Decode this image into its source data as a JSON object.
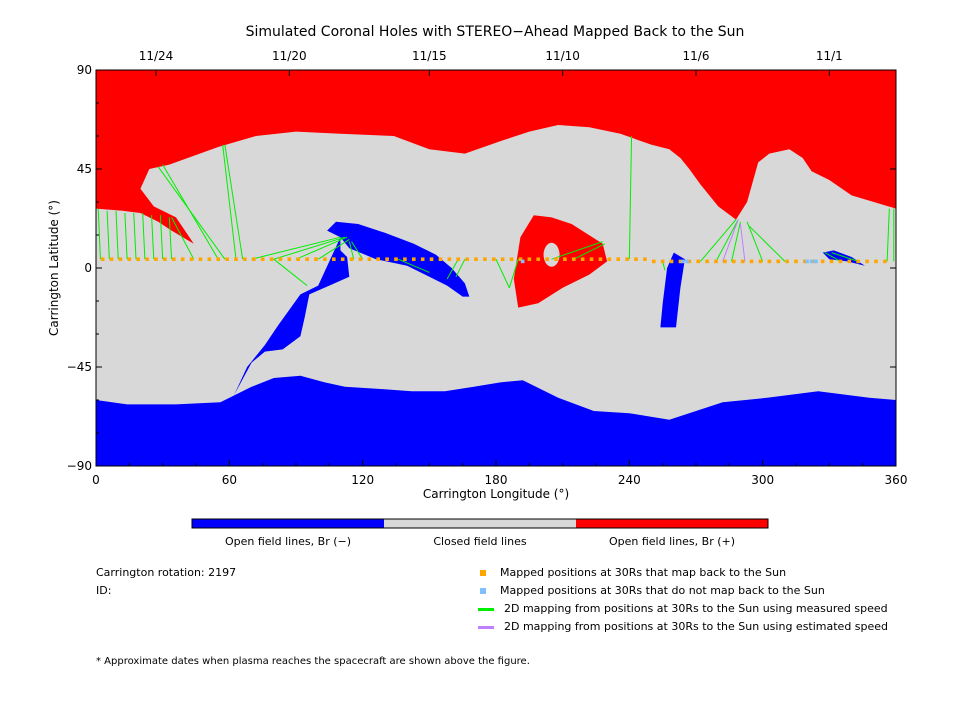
{
  "chart_data": {
    "type": "heatmap",
    "title": "Simulated Coronal Holes with STEREO−Ahead Mapped Back to the Sun",
    "xlabel": "Carrington Longitude (°)",
    "ylabel": "Carrington Latitude (°)",
    "xlim": [
      0,
      360
    ],
    "ylim": [
      -90,
      90
    ],
    "x_ticks": [
      0,
      60,
      120,
      180,
      240,
      300,
      360
    ],
    "y_ticks": [
      -90,
      -45,
      0,
      45,
      90
    ],
    "y_tick_labels": [
      "−90",
      "−45",
      "0",
      "45",
      "90"
    ],
    "top_axis": {
      "labels": [
        "11/24",
        "11/20",
        "11/15",
        "11/10",
        "11/6",
        "11/1"
      ],
      "longitudes": [
        27,
        87,
        150,
        210,
        270,
        330
      ]
    },
    "colors": {
      "open_negative": "#0000ff",
      "closed": "#d8d8d8",
      "open_positive": "#ff0000",
      "mapped": "#ffa500",
      "not_mapped": "#7fbfff",
      "measured_speed": "#00ee00",
      "estimated_speed": "#bf7fff"
    },
    "colorbar": [
      "Open field lines, Br (−)",
      "Closed field lines",
      "Open field lines, Br (+)"
    ],
    "regions": [
      {
        "name": "north-positive",
        "polarity": "+",
        "polygon": [
          [
            0,
            90
          ],
          [
            360,
            90
          ],
          [
            360,
            27
          ],
          [
            350,
            30
          ],
          [
            340,
            33
          ],
          [
            330,
            40
          ],
          [
            322,
            44
          ],
          [
            318,
            50
          ],
          [
            312,
            54
          ],
          [
            303,
            52
          ],
          [
            298,
            48
          ],
          [
            293,
            30
          ],
          [
            288,
            22
          ],
          [
            280,
            28
          ],
          [
            272,
            38
          ],
          [
            267,
            45
          ],
          [
            263,
            50
          ],
          [
            258,
            54
          ],
          [
            250,
            56
          ],
          [
            236,
            61
          ],
          [
            222,
            64
          ],
          [
            208,
            65
          ],
          [
            195,
            62
          ],
          [
            183,
            58
          ],
          [
            166,
            52
          ],
          [
            150,
            54
          ],
          [
            134,
            60
          ],
          [
            110,
            61
          ],
          [
            90,
            62
          ],
          [
            72,
            60
          ],
          [
            55,
            55
          ],
          [
            33,
            47
          ],
          [
            24,
            45
          ],
          [
            20,
            36
          ],
          [
            26,
            28
          ],
          [
            36,
            23
          ],
          [
            44,
            11
          ],
          [
            34,
            17
          ],
          [
            28,
            21
          ],
          [
            20,
            25
          ],
          [
            12,
            26
          ],
          [
            0,
            27
          ]
        ]
      },
      {
        "name": "mid-positive",
        "polarity": "+",
        "polygon": [
          [
            190,
            -18
          ],
          [
            188,
            -5
          ],
          [
            191,
            14
          ],
          [
            197,
            24
          ],
          [
            205,
            23
          ],
          [
            214,
            20
          ],
          [
            228,
            11
          ],
          [
            230,
            3
          ],
          [
            222,
            -3
          ],
          [
            210,
            -9
          ],
          [
            199,
            -16
          ]
        ]
      },
      {
        "name": "south-negative",
        "polarity": "-",
        "polygon": [
          [
            0,
            -60
          ],
          [
            14,
            -62
          ],
          [
            36,
            -62
          ],
          [
            56,
            -61
          ],
          [
            70,
            -54
          ],
          [
            80,
            -50
          ],
          [
            92,
            -49
          ],
          [
            103,
            -52
          ],
          [
            112,
            -54
          ],
          [
            128,
            -55
          ],
          [
            142,
            -56
          ],
          [
            157,
            -56
          ],
          [
            170,
            -54
          ],
          [
            182,
            -52
          ],
          [
            192,
            -51
          ],
          [
            208,
            -59
          ],
          [
            224,
            -65
          ],
          [
            240,
            -66
          ],
          [
            258,
            -69
          ],
          [
            282,
            -61
          ],
          [
            302,
            -59
          ],
          [
            325,
            -56
          ],
          [
            348,
            -59
          ],
          [
            360,
            -60
          ],
          [
            360,
            -90
          ],
          [
            0,
            -90
          ]
        ]
      },
      {
        "name": "south-negative-finger",
        "polarity": "-",
        "polygon": [
          [
            62,
            -58
          ],
          [
            70,
            -43
          ],
          [
            76,
            -38
          ],
          [
            84,
            -37
          ],
          [
            92,
            -31
          ],
          [
            94,
            -22
          ],
          [
            96,
            -12
          ],
          [
            105,
            -8
          ],
          [
            114,
            -4
          ],
          [
            113,
            5
          ],
          [
            110,
            8
          ],
          [
            110,
            14
          ],
          [
            104,
            17
          ],
          [
            108,
            21
          ],
          [
            118,
            20
          ],
          [
            130,
            16
          ],
          [
            143,
            11
          ],
          [
            153,
            6
          ],
          [
            160,
            0
          ],
          [
            166,
            -7
          ],
          [
            168,
            -13
          ],
          [
            165,
            -13
          ],
          [
            158,
            -8
          ],
          [
            150,
            -4
          ],
          [
            140,
            1
          ],
          [
            126,
            4
          ],
          [
            114,
            9
          ],
          [
            110,
            14
          ],
          [
            100,
            -8
          ],
          [
            92,
            -12
          ],
          [
            82,
            -26
          ],
          [
            76,
            -35
          ],
          [
            68,
            -45
          ]
        ]
      },
      {
        "name": "mid-negative",
        "polarity": "-",
        "polygon": [
          [
            254,
            -27
          ],
          [
            255,
            -16
          ],
          [
            257,
            0
          ],
          [
            260,
            7
          ],
          [
            265,
            4
          ],
          [
            263,
            -9
          ],
          [
            261,
            -27
          ]
        ]
      },
      {
        "name": "small-negative",
        "polarity": "-",
        "polygon": [
          [
            327,
            7
          ],
          [
            332,
            8
          ],
          [
            340,
            5
          ],
          [
            346,
            1
          ],
          [
            338,
            3
          ],
          [
            330,
            4
          ]
        ]
      }
    ],
    "mapped_longitudes": [
      3,
      7,
      11,
      15,
      19,
      23,
      27,
      31,
      35,
      39,
      43,
      47,
      51,
      55,
      59,
      63,
      67,
      71,
      75,
      79,
      83,
      87,
      91,
      95,
      99,
      103,
      107,
      111,
      115,
      119,
      123,
      127,
      131,
      135,
      139,
      143,
      147,
      151,
      155,
      159,
      163,
      167,
      171,
      175,
      179,
      183,
      187,
      191,
      195,
      199,
      203,
      207,
      211,
      215,
      219,
      223,
      227,
      231,
      235,
      239,
      243,
      247,
      251,
      255,
      259,
      263,
      267,
      271,
      275,
      279,
      283,
      287,
      291,
      295,
      299,
      303,
      307,
      311,
      315,
      319,
      323,
      327,
      331,
      335,
      339,
      343,
      347,
      351,
      355
    ],
    "not_mapped_longitudes": [
      192,
      264,
      266,
      320,
      322,
      324
    ],
    "mapping_lines_measured": [
      {
        "from": [
          2,
          4
        ],
        "to": [
          1,
          27
        ]
      },
      {
        "from": [
          6,
          4
        ],
        "to": [
          5,
          26
        ]
      },
      {
        "from": [
          10,
          4
        ],
        "to": [
          9,
          26
        ]
      },
      {
        "from": [
          14,
          4
        ],
        "to": [
          13,
          25
        ]
      },
      {
        "from": [
          18,
          4
        ],
        "to": [
          17,
          25
        ]
      },
      {
        "from": [
          22,
          4
        ],
        "to": [
          21,
          25
        ]
      },
      {
        "from": [
          26,
          4
        ],
        "to": [
          25,
          24
        ]
      },
      {
        "from": [
          30,
          4
        ],
        "to": [
          29,
          24
        ]
      },
      {
        "from": [
          34,
          4
        ],
        "to": [
          33,
          23
        ]
      },
      {
        "from": [
          44,
          4
        ],
        "to": [
          34,
          23
        ]
      },
      {
        "from": [
          55,
          4
        ],
        "to": [
          30,
          47
        ]
      },
      {
        "from": [
          58,
          4
        ],
        "to": [
          28,
          46
        ]
      },
      {
        "from": [
          63,
          4
        ],
        "to": [
          57,
          56
        ]
      },
      {
        "from": [
          66,
          4
        ],
        "to": [
          58,
          56
        ]
      },
      {
        "from": [
          70,
          4
        ],
        "to": [
          110,
          14
        ]
      },
      {
        "from": [
          80,
          4
        ],
        "to": [
          112,
          14
        ]
      },
      {
        "from": [
          90,
          4
        ],
        "to": [
          113,
          14
        ]
      },
      {
        "from": [
          100,
          4
        ],
        "to": [
          114,
          13
        ]
      },
      {
        "from": [
          95,
          -8
        ],
        "to": [
          80,
          4
        ]
      },
      {
        "from": [
          116,
          4
        ],
        "to": [
          114,
          12
        ]
      },
      {
        "from": [
          120,
          4
        ],
        "to": [
          115,
          12
        ]
      },
      {
        "from": [
          136,
          4
        ],
        "to": [
          150,
          -2
        ]
      },
      {
        "from": [
          158,
          -5
        ],
        "to": [
          163,
          4
        ]
      },
      {
        "from": [
          162,
          -4
        ],
        "to": [
          166,
          4
        ]
      },
      {
        "from": [
          186,
          -9
        ],
        "to": [
          180,
          4
        ]
      },
      {
        "from": [
          186,
          -9
        ],
        "to": [
          190,
          4
        ]
      },
      {
        "from": [
          205,
          4
        ],
        "to": [
          228,
          12
        ]
      },
      {
        "from": [
          215,
          4
        ],
        "to": [
          229,
          11
        ]
      },
      {
        "from": [
          240,
          4
        ],
        "to": [
          241,
          60
        ]
      },
      {
        "from": [
          255,
          3
        ],
        "to": [
          256,
          -1
        ]
      },
      {
        "from": [
          272,
          3
        ],
        "to": [
          288,
          22
        ]
      },
      {
        "from": [
          279,
          3
        ],
        "to": [
          289,
          22
        ]
      },
      {
        "from": [
          286,
          3
        ],
        "to": [
          290,
          21
        ]
      },
      {
        "from": [
          300,
          3
        ],
        "to": [
          293,
          21
        ]
      },
      {
        "from": [
          310,
          3
        ],
        "to": [
          294,
          19
        ]
      },
      {
        "from": [
          335,
          3
        ],
        "to": [
          328,
          7
        ]
      },
      {
        "from": [
          343,
          3
        ],
        "to": [
          331,
          7
        ]
      },
      {
        "from": [
          356,
          3
        ],
        "to": [
          357,
          27
        ]
      },
      {
        "from": [
          359,
          3
        ],
        "to": [
          359,
          27
        ]
      }
    ],
    "mapping_lines_estimated": [
      {
        "from": [
          282,
          3
        ],
        "to": [
          289,
          22
        ]
      },
      {
        "from": [
          292,
          3
        ],
        "to": [
          290,
          20
        ]
      }
    ]
  },
  "annotations": {
    "carrington_rotation": "Carrington rotation: 2197",
    "id": "ID:",
    "footnote": "* Approximate dates when plasma reaches the spacecraft are shown above the figure."
  },
  "legend": [
    {
      "label": "Mapped positions at 30Rs that map back to the Sun",
      "kind": "square",
      "color": "#ffa500"
    },
    {
      "label": "Mapped positions at 30Rs that do not map back to the Sun",
      "kind": "square",
      "color": "#7fbfff"
    },
    {
      "label": "2D mapping from positions at 30Rs to the Sun using measured speed",
      "kind": "line",
      "color": "#00ee00"
    },
    {
      "label": "2D mapping from positions at 30Rs to the Sun using estimated speed",
      "kind": "line",
      "color": "#bf7fff"
    }
  ]
}
